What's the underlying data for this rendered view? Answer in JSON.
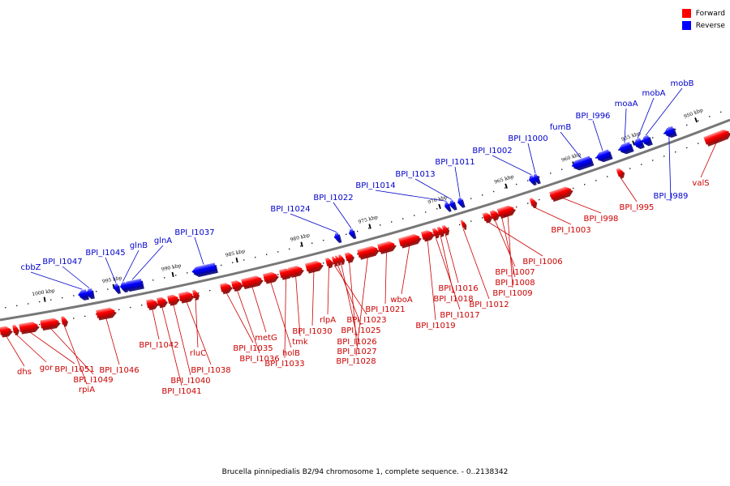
{
  "legend": {
    "forward_label": "Forward",
    "reverse_label": "Reverse",
    "forward_color": "#ff0000",
    "reverse_color": "#0000ff"
  },
  "caption": "Brucella pinnipedialis B2/94 chromosome 1, complete sequence. - 0..2138342",
  "ticks": [
    {
      "label": "1000 kbp"
    },
    {
      "label": "995 kbp"
    },
    {
      "label": "990 kbp"
    },
    {
      "label": "985 kbp"
    },
    {
      "label": "980 kbp"
    },
    {
      "label": "975 kbp"
    },
    {
      "label": "970 kbp"
    },
    {
      "label": "965 kbp"
    },
    {
      "label": "960 kbp"
    },
    {
      "label": "955 kbp"
    },
    {
      "label": "950 kbp"
    }
  ],
  "reverse_genes": [
    {
      "name": "cbbZ"
    },
    {
      "name": "BPI_I1047"
    },
    {
      "name": "BPI_I1045"
    },
    {
      "name": "glnB"
    },
    {
      "name": "glnA"
    },
    {
      "name": "BPI_I1037"
    },
    {
      "name": "BPI_I1024"
    },
    {
      "name": "BPI_I1022"
    },
    {
      "name": "BPI_I1014"
    },
    {
      "name": "BPI_I1013"
    },
    {
      "name": "BPI_I1011"
    },
    {
      "name": "BPI_I1002"
    },
    {
      "name": "BPI_I1000"
    },
    {
      "name": "fumB"
    },
    {
      "name": "BPI_I996"
    },
    {
      "name": "moaA"
    },
    {
      "name": "mobA"
    },
    {
      "name": "mobB"
    },
    {
      "name": "BPI_I989"
    }
  ],
  "forward_genes": [
    {
      "name": "dhs"
    },
    {
      "name": "gor"
    },
    {
      "name": "BPI_I1051"
    },
    {
      "name": "BPI_I1049"
    },
    {
      "name": "rpiA"
    },
    {
      "name": "BPI_I1046"
    },
    {
      "name": "BPI_I1042"
    },
    {
      "name": "BPI_I1041"
    },
    {
      "name": "BPI_I1040"
    },
    {
      "name": "BPI_I1038"
    },
    {
      "name": "rluC"
    },
    {
      "name": "BPI_I1035"
    },
    {
      "name": "BPI_I1036"
    },
    {
      "name": "metG"
    },
    {
      "name": "holB"
    },
    {
      "name": "BPI_I1033"
    },
    {
      "name": "tmk"
    },
    {
      "name": "BPI_I1030"
    },
    {
      "name": "rlpA"
    },
    {
      "name": "BPI_I1023"
    },
    {
      "name": "BPI_I1025"
    },
    {
      "name": "BPI_I1026"
    },
    {
      "name": "BPI_I1027"
    },
    {
      "name": "BPI_I1028"
    },
    {
      "name": "BPI_I1021"
    },
    {
      "name": "wboA"
    },
    {
      "name": "BPI_I1019"
    },
    {
      "name": "BPI_I1017"
    },
    {
      "name": "BPI_I1018"
    },
    {
      "name": "BPI_I1016"
    },
    {
      "name": "BPI_I1012"
    },
    {
      "name": "BPI_I1006"
    },
    {
      "name": "BPI_I1007"
    },
    {
      "name": "BPI_I1008"
    },
    {
      "name": "BPI_I1009"
    },
    {
      "name": "BPI_I1003"
    },
    {
      "name": "BPI_I998"
    },
    {
      "name": "BPI_I995"
    },
    {
      "name": "valS"
    }
  ]
}
